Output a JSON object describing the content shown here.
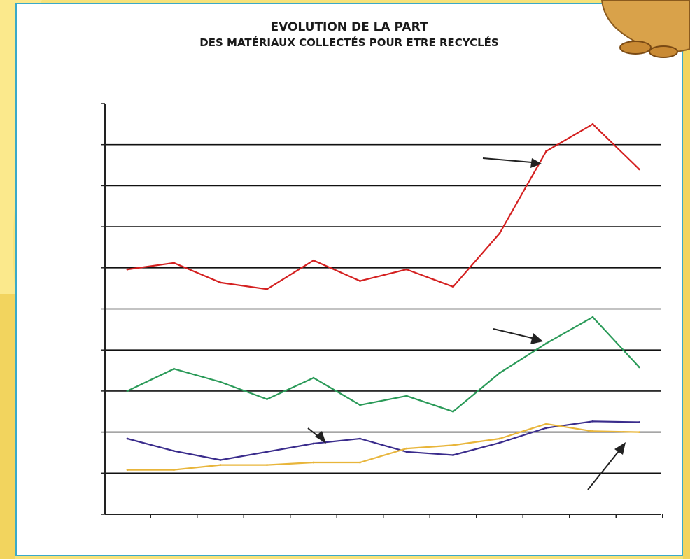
{
  "chart_data": {
    "type": "line",
    "title": "EVOLUTION DE LA PART",
    "subtitle": "DES MATÉRIAUX COLLECTÉS POUR ETRE RECYCLÉS",
    "subtitle2": "",
    "xlabel": "",
    "ylabel": "",
    "categories": [
      "",
      "",
      "",
      "",
      "",
      "",
      "",
      "",
      "",
      "",
      "",
      ""
    ],
    "y_ticks": [
      "",
      "",
      "",
      "",
      "",
      "",
      "",
      "",
      "",
      "",
      ""
    ],
    "ylim": [
      0,
      50
    ],
    "grid": true,
    "series": [
      {
        "color": "#d42020",
        "values": [
          29.8,
          30.6,
          28.2,
          27.4,
          30.9,
          28.4,
          29.8,
          27.7,
          34.2,
          44.2,
          47.5,
          42.0
        ]
      },
      {
        "color": "#2a9a58",
        "values": [
          15.0,
          17.7,
          16.1,
          14.0,
          16.6,
          13.3,
          14.4,
          12.5,
          17.2,
          20.8,
          24.0,
          17.9
        ]
      },
      {
        "color": "#3a2c8c",
        "values": [
          9.2,
          7.7,
          6.6,
          7.6,
          8.6,
          9.2,
          7.6,
          7.2,
          8.7,
          10.5,
          11.3,
          11.2
        ]
      },
      {
        "color": "#e8b53a",
        "values": [
          5.4,
          5.4,
          6.0,
          6.0,
          6.3,
          6.3,
          8.0,
          8.4,
          9.2,
          11.0,
          10.1,
          10.0
        ]
      }
    ],
    "annotations": [
      "",
      "",
      "",
      ""
    ]
  }
}
